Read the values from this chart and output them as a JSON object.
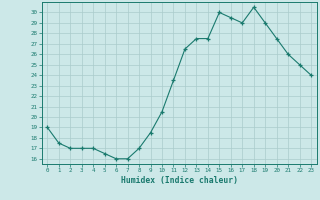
{
  "x": [
    0,
    1,
    2,
    3,
    4,
    5,
    6,
    7,
    8,
    9,
    10,
    11,
    12,
    13,
    14,
    15,
    16,
    17,
    18,
    19,
    20,
    21,
    22,
    23
  ],
  "y": [
    19,
    17.5,
    17,
    17,
    17,
    16.5,
    16,
    16,
    17,
    18.5,
    20.5,
    23.5,
    26.5,
    27.5,
    27.5,
    30,
    29.5,
    29,
    30.5,
    29,
    27.5,
    26,
    25,
    24
  ],
  "xlabel": "Humidex (Indice chaleur)",
  "ylim": [
    15.5,
    31
  ],
  "xlim": [
    -0.5,
    23.5
  ],
  "yticks": [
    16,
    17,
    18,
    19,
    20,
    21,
    22,
    23,
    24,
    25,
    26,
    27,
    28,
    29,
    30
  ],
  "xticks": [
    0,
    1,
    2,
    3,
    4,
    5,
    6,
    7,
    8,
    9,
    10,
    11,
    12,
    13,
    14,
    15,
    16,
    17,
    18,
    19,
    20,
    21,
    22,
    23
  ],
  "line_color": "#1a7a6e",
  "bg_color": "#cce8e8",
  "grid_color": "#aacccc"
}
